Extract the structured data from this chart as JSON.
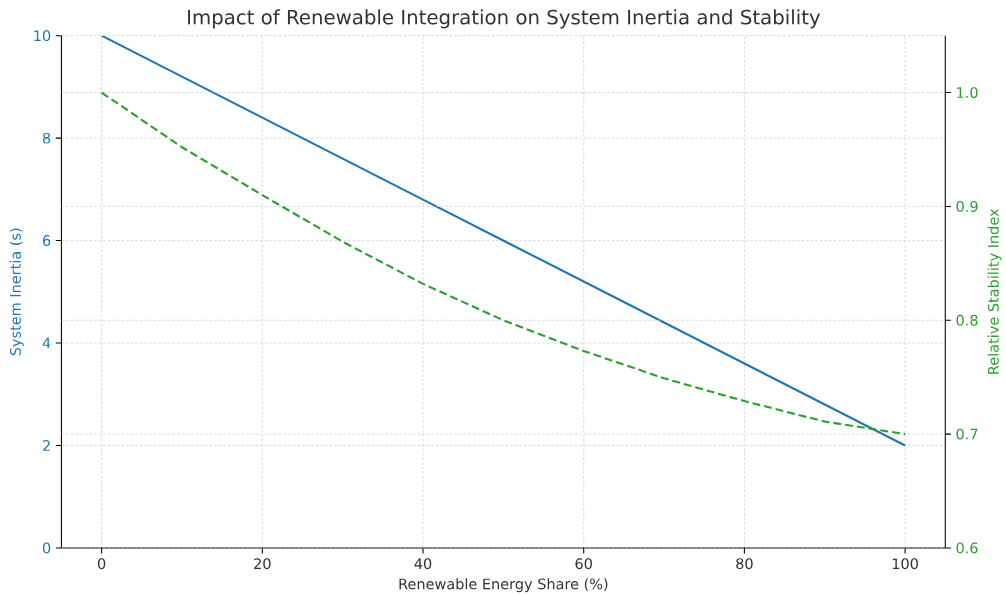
{
  "chart_data": {
    "type": "line",
    "title": "Impact of Renewable Integration on System Inertia and Stability",
    "xlabel": "Renewable Energy Share (%)",
    "ylabel": "System Inertia (s)",
    "y2label": "Relative Stability Index",
    "x": [
      0,
      10,
      20,
      30,
      40,
      50,
      60,
      70,
      80,
      90,
      100
    ],
    "series": [
      {
        "color": "#1f77b4",
        "line_style": "solid",
        "values": [
          10,
          9.2,
          8.4,
          7.6,
          6.8,
          6.0,
          5.2,
          4.4,
          3.6,
          2.8,
          2.0
        ]
      },
      {
        "color": "#2ca02c",
        "line_style": "dashed",
        "axis": "y2",
        "values": [
          1.0,
          0.952,
          0.91,
          0.869,
          0.832,
          0.8,
          0.773,
          0.749,
          0.729,
          0.711,
          0.7
        ]
      }
    ],
    "xlim": [
      -5,
      105
    ],
    "xticks": [
      0,
      20,
      40,
      60,
      80,
      100
    ],
    "ylim": [
      0,
      10
    ],
    "yticks": [
      0,
      2,
      4,
      6,
      8,
      10
    ],
    "y2lim": [
      0.6,
      1.05
    ],
    "y2ticks": [
      0.6,
      0.7,
      0.8,
      0.9,
      {
        "value": 1.0,
        "label": "1.0"
      }
    ],
    "grid": true
  }
}
